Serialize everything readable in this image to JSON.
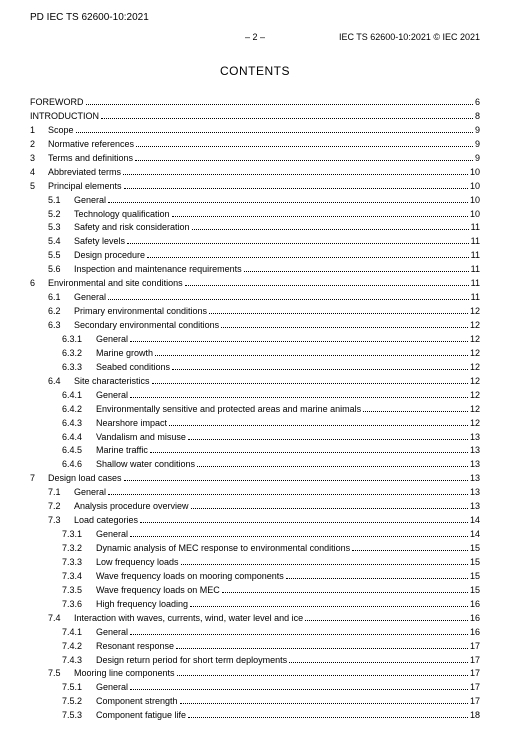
{
  "header": {
    "doc_id_top_left": "PD IEC TS 62600-10:2021",
    "page_marker": "– 2 –",
    "doc_id_top_right": "IEC TS 62600-10:2021 © IEC 2021",
    "contents_title": "CONTENTS"
  },
  "toc": [
    {
      "level": 0,
      "num": "",
      "label": "FOREWORD",
      "page": "6"
    },
    {
      "level": 0,
      "num": "",
      "label": "INTRODUCTION",
      "page": "8"
    },
    {
      "level": 1,
      "num": "1",
      "label": "Scope",
      "page": "9"
    },
    {
      "level": 1,
      "num": "2",
      "label": "Normative references",
      "page": "9"
    },
    {
      "level": 1,
      "num": "3",
      "label": "Terms and definitions",
      "page": "9"
    },
    {
      "level": 1,
      "num": "4",
      "label": "Abbreviated terms",
      "page": "10"
    },
    {
      "level": 1,
      "num": "5",
      "label": "Principal elements",
      "page": "10"
    },
    {
      "level": 2,
      "num": "5.1",
      "label": "General",
      "page": "10"
    },
    {
      "level": 2,
      "num": "5.2",
      "label": "Technology qualification",
      "page": "10"
    },
    {
      "level": 2,
      "num": "5.3",
      "label": "Safety and risk consideration",
      "page": "11"
    },
    {
      "level": 2,
      "num": "5.4",
      "label": "Safety levels",
      "page": "11"
    },
    {
      "level": 2,
      "num": "5.5",
      "label": "Design procedure",
      "page": "11"
    },
    {
      "level": 2,
      "num": "5.6",
      "label": "Inspection and maintenance requirements",
      "page": "11"
    },
    {
      "level": 1,
      "num": "6",
      "label": "Environmental and site conditions",
      "page": "11"
    },
    {
      "level": 2,
      "num": "6.1",
      "label": "General",
      "page": "11"
    },
    {
      "level": 2,
      "num": "6.2",
      "label": "Primary environmental conditions",
      "page": "12"
    },
    {
      "level": 2,
      "num": "6.3",
      "label": "Secondary environmental conditions",
      "page": "12"
    },
    {
      "level": 3,
      "num": "6.3.1",
      "label": "General",
      "page": "12"
    },
    {
      "level": 3,
      "num": "6.3.2",
      "label": "Marine growth",
      "page": "12"
    },
    {
      "level": 3,
      "num": "6.3.3",
      "label": "Seabed conditions",
      "page": "12"
    },
    {
      "level": 2,
      "num": "6.4",
      "label": "Site characteristics",
      "page": "12"
    },
    {
      "level": 3,
      "num": "6.4.1",
      "label": "General",
      "page": "12"
    },
    {
      "level": 3,
      "num": "6.4.2",
      "label": "Environmentally sensitive and protected areas and marine animals",
      "page": "12"
    },
    {
      "level": 3,
      "num": "6.4.3",
      "label": "Nearshore impact",
      "page": "12"
    },
    {
      "level": 3,
      "num": "6.4.4",
      "label": "Vandalism and misuse",
      "page": "13"
    },
    {
      "level": 3,
      "num": "6.4.5",
      "label": "Marine traffic",
      "page": "13"
    },
    {
      "level": 3,
      "num": "6.4.6",
      "label": "Shallow water conditions",
      "page": "13"
    },
    {
      "level": 1,
      "num": "7",
      "label": "Design load cases",
      "page": "13"
    },
    {
      "level": 2,
      "num": "7.1",
      "label": "General",
      "page": "13"
    },
    {
      "level": 2,
      "num": "7.2",
      "label": "Analysis procedure overview",
      "page": "13"
    },
    {
      "level": 2,
      "num": "7.3",
      "label": "Load categories",
      "page": "14"
    },
    {
      "level": 3,
      "num": "7.3.1",
      "label": "General",
      "page": "14"
    },
    {
      "level": 3,
      "num": "7.3.2",
      "label": "Dynamic analysis of MEC response to environmental conditions",
      "page": "15"
    },
    {
      "level": 3,
      "num": "7.3.3",
      "label": "Low frequency loads",
      "page": "15"
    },
    {
      "level": 3,
      "num": "7.3.4",
      "label": "Wave frequency loads on mooring components",
      "page": "15"
    },
    {
      "level": 3,
      "num": "7.3.5",
      "label": "Wave frequency loads on MEC",
      "page": "15"
    },
    {
      "level": 3,
      "num": "7.3.6",
      "label": "High frequency loading",
      "page": "16"
    },
    {
      "level": 2,
      "num": "7.4",
      "label": "Interaction with waves, currents, wind, water level and ice",
      "page": "16"
    },
    {
      "level": 3,
      "num": "7.4.1",
      "label": "General",
      "page": "16"
    },
    {
      "level": 3,
      "num": "7.4.2",
      "label": "Resonant response",
      "page": "17"
    },
    {
      "level": 3,
      "num": "7.4.3",
      "label": "Design return period for short term deployments",
      "page": "17"
    },
    {
      "level": 2,
      "num": "7.5",
      "label": "Mooring line components",
      "page": "17"
    },
    {
      "level": 3,
      "num": "7.5.1",
      "label": "General",
      "page": "17"
    },
    {
      "level": 3,
      "num": "7.5.2",
      "label": "Component strength",
      "page": "17"
    },
    {
      "level": 3,
      "num": "7.5.3",
      "label": "Component fatigue life",
      "page": "18"
    }
  ]
}
